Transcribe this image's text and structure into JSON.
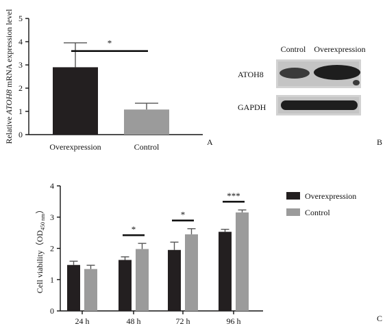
{
  "panels": {
    "a": "A",
    "b": "B",
    "c": "C"
  },
  "blot": {
    "lanes": [
      "Control",
      "Overexpression"
    ],
    "rows": [
      "ATOH8",
      "GAPDH"
    ]
  },
  "chart_data": [
    {
      "type": "bar",
      "ylabel_pre": "Relative ",
      "ylabel_italic": "ATOH8",
      "ylabel_post": " mRNA expression level",
      "categories": [
        "Overexpression",
        "Control"
      ],
      "values": [
        2.9,
        1.08
      ],
      "errors": [
        1.05,
        0.27
      ],
      "bar_colors": [
        "#231f20",
        "#9b9b9b"
      ],
      "ylim": [
        0,
        5
      ],
      "yticks": [
        0,
        1,
        2,
        3,
        4,
        5
      ],
      "annotations": [
        {
          "text": "*",
          "between": [
            "Overexpression",
            "Control"
          ]
        }
      ]
    },
    {
      "type": "bar",
      "ylabel": "Cell viability（OD",
      "ylabel_sub": "450 nm",
      "ylabel_end": "）",
      "categories": [
        "24 h",
        "48 h",
        "72 h",
        "96 h"
      ],
      "series": [
        {
          "name": "Overexpression",
          "color": "#231f20",
          "values": [
            1.47,
            1.63,
            1.95,
            2.53
          ],
          "errors": [
            0.12,
            0.1,
            0.25,
            0.08
          ]
        },
        {
          "name": "Control",
          "color": "#9b9b9b",
          "values": [
            1.34,
            1.98,
            2.45,
            3.15
          ],
          "errors": [
            0.12,
            0.18,
            0.18,
            0.08
          ]
        }
      ],
      "ylim": [
        0,
        4
      ],
      "yticks": [
        0,
        1,
        2,
        3,
        4
      ],
      "legend": "top-right",
      "annotations": [
        {
          "category": "48 h",
          "text": "*"
        },
        {
          "category": "72 h",
          "text": "*"
        },
        {
          "category": "96 h",
          "text": "***"
        }
      ]
    }
  ]
}
